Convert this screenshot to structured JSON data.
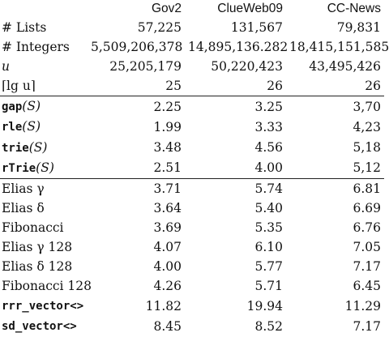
{
  "headers": [
    "",
    "Gov2",
    "ClueWeb09",
    "CC-News"
  ],
  "groups": [
    {
      "rows": [
        {
          "label": "# Lists",
          "style": "plain",
          "values": [
            "57,225",
            "131,567",
            "79,831"
          ]
        },
        {
          "label": "# Integers",
          "style": "plain",
          "values": [
            "5,509,206,378",
            "14,895,136.282",
            "18,415,151,585"
          ]
        },
        {
          "label": "u",
          "style": "italic",
          "values": [
            "25,205,179",
            "50,220,423",
            "43,495,426"
          ]
        },
        {
          "label": "⌈lg u⌉",
          "style": "plain",
          "values": [
            "25",
            "26",
            "26"
          ]
        }
      ]
    },
    {
      "rows": [
        {
          "label_code": "gap",
          "label_arg": "(S)",
          "style": "code-func",
          "values": [
            "2.25",
            "3.25",
            "3,70"
          ]
        },
        {
          "label_code": "rle",
          "label_arg": "(S)",
          "style": "code-func",
          "values": [
            "1.99",
            "3.33",
            "4,23"
          ]
        },
        {
          "label_code": "trie",
          "label_arg": "(S)",
          "style": "code-func",
          "values": [
            "3.48",
            "4.56",
            "5,18"
          ]
        },
        {
          "label_code": "rTrie",
          "label_arg": "(S)",
          "style": "code-func",
          "values": [
            "2.51",
            "4.00",
            "5,12"
          ]
        }
      ]
    },
    {
      "rows": [
        {
          "label": "Elias γ",
          "style": "plain",
          "values": [
            "3.71",
            "5.74",
            "6.81"
          ]
        },
        {
          "label": "Elias δ",
          "style": "plain",
          "values": [
            "3.64",
            "5.40",
            "6.69"
          ]
        },
        {
          "label": "Fibonacci",
          "style": "plain",
          "values": [
            "3.69",
            "5.35",
            "6.76"
          ]
        },
        {
          "label": "Elias γ 128",
          "style": "plain",
          "values": [
            "4.07",
            "6.10",
            "7.05"
          ]
        },
        {
          "label": "Elias δ 128",
          "style": "plain",
          "values": [
            "4.00",
            "5.77",
            "7.17"
          ]
        },
        {
          "label": "Fibonacci 128",
          "style": "plain",
          "values": [
            "4.26",
            "5.71",
            "6.45"
          ]
        },
        {
          "label_code": "rrr_vector<>",
          "style": "code",
          "values": [
            "11.82",
            "19.94",
            "11.29"
          ]
        },
        {
          "label_code": "sd_vector<>",
          "style": "code",
          "values": [
            "8.45",
            "8.52",
            "7.17"
          ]
        }
      ]
    }
  ]
}
